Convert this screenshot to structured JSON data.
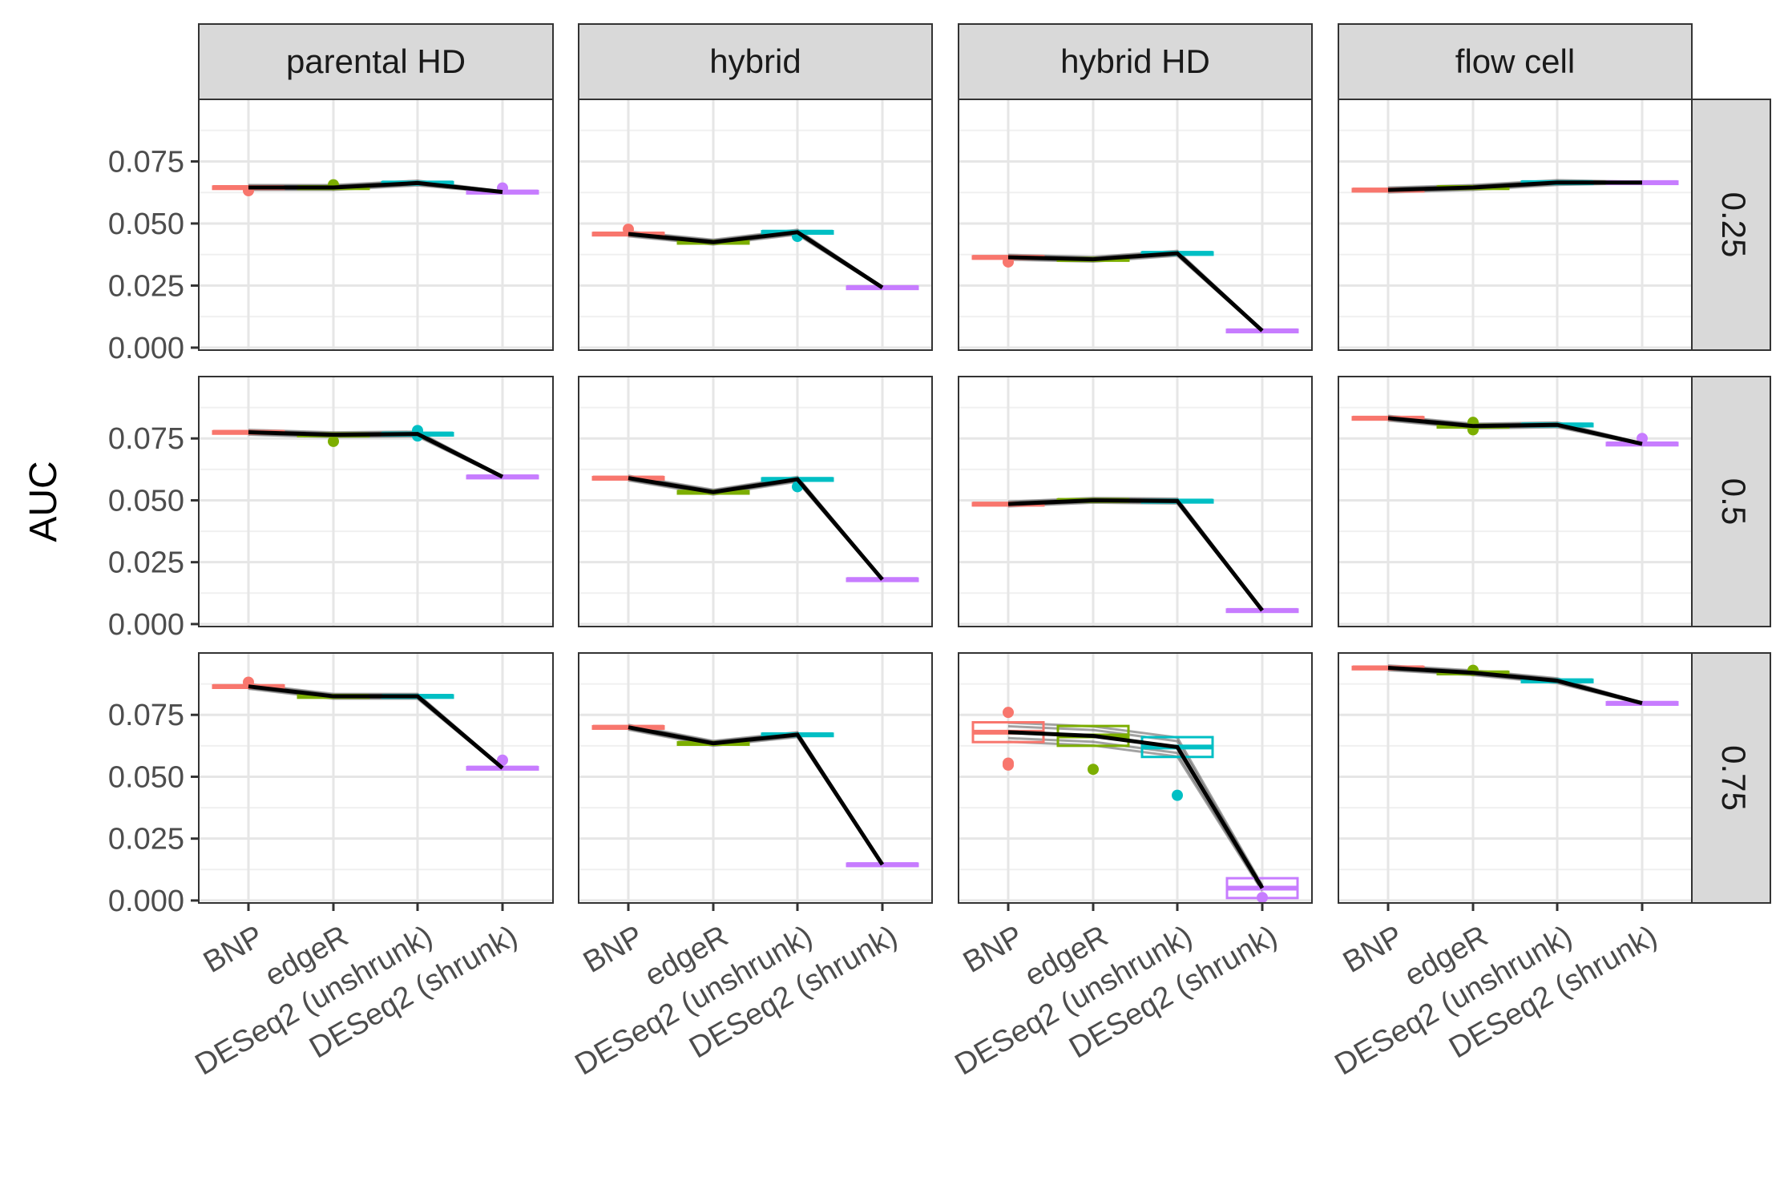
{
  "chart_data": {
    "type": "faceted-line-boxplot",
    "title": "",
    "xlabel": "",
    "ylabel": "AUC",
    "methods": [
      "BNP",
      "edgeR",
      "DESeq2 (unshrunk)",
      "DESeq2 (shrunk)"
    ],
    "method_colors": [
      "#F8766D",
      "#7CAE00",
      "#00BFC4",
      "#C77CFF"
    ],
    "column_facets": [
      "parental HD",
      "hybrid",
      "hybrid HD",
      "flow cell"
    ],
    "row_facets": [
      "0.25",
      "0.5",
      "0.75"
    ],
    "y_ticks": [
      "0.000",
      "0.025",
      "0.050",
      "0.075"
    ],
    "y_tick_values": [
      0,
      0.025,
      0.05,
      0.075
    ],
    "ylim": [
      -0.001,
      0.1
    ],
    "grid": true,
    "legend": "none",
    "panels": [
      {
        "row": "0.25",
        "col": "parental HD",
        "medians": [
          0.0645,
          0.0645,
          0.0663,
          0.0627
        ],
        "outliers": [
          [
            0,
            0.0632
          ],
          [
            1,
            0.0656
          ],
          [
            3,
            0.0643
          ]
        ]
      },
      {
        "row": "0.25",
        "col": "hybrid",
        "medians": [
          0.0458,
          0.0425,
          0.0465,
          0.0242
        ],
        "outliers": [
          [
            0,
            0.0477
          ],
          [
            2,
            0.0448
          ]
        ]
      },
      {
        "row": "0.25",
        "col": "hybrid HD",
        "medians": [
          0.0364,
          0.0356,
          0.038,
          0.0068
        ],
        "outliers": [
          [
            0,
            0.0345
          ]
        ]
      },
      {
        "row": "0.25",
        "col": "flow cell",
        "medians": [
          0.0635,
          0.0645,
          0.0665,
          0.0665
        ],
        "outliers": []
      },
      {
        "row": "0.5",
        "col": "parental HD",
        "medians": [
          0.0775,
          0.0765,
          0.0768,
          0.0595
        ],
        "outliers": [
          [
            1,
            0.0738
          ],
          [
            2,
            0.0782
          ],
          [
            2,
            0.076
          ]
        ]
      },
      {
        "row": "0.5",
        "col": "hybrid",
        "medians": [
          0.059,
          0.0533,
          0.0585,
          0.018
        ],
        "outliers": [
          [
            2,
            0.0555
          ]
        ]
      },
      {
        "row": "0.5",
        "col": "hybrid HD",
        "medians": [
          0.0485,
          0.05,
          0.0497,
          0.0055
        ],
        "outliers": []
      },
      {
        "row": "0.5",
        "col": "flow cell",
        "medians": [
          0.0832,
          0.08,
          0.0805,
          0.0728
        ],
        "outliers": [
          [
            1,
            0.0785
          ],
          [
            1,
            0.0815
          ],
          [
            3,
            0.075
          ]
        ]
      },
      {
        "row": "0.75",
        "col": "parental HD",
        "medians": [
          0.0865,
          0.0825,
          0.0825,
          0.0535
        ],
        "outliers": [
          [
            0,
            0.0882
          ],
          [
            3,
            0.0567
          ]
        ]
      },
      {
        "row": "0.75",
        "col": "hybrid",
        "medians": [
          0.07,
          0.0635,
          0.067,
          0.0145
        ],
        "outliers": []
      },
      {
        "row": "0.75",
        "col": "hybrid HD",
        "medians": [
          0.068,
          0.0665,
          0.062,
          0.005
        ],
        "outliers": [
          [
            0,
            0.076
          ],
          [
            0,
            0.0555
          ],
          [
            0,
            0.0547
          ],
          [
            1,
            0.053
          ],
          [
            2,
            0.0425
          ],
          [
            3,
            0.0012
          ]
        ]
      },
      {
        "row": "0.75",
        "col": "flow cell",
        "medians": [
          0.094,
          0.092,
          0.0888,
          0.0797
        ],
        "outliers": [
          [
            1,
            0.093
          ]
        ]
      }
    ]
  }
}
